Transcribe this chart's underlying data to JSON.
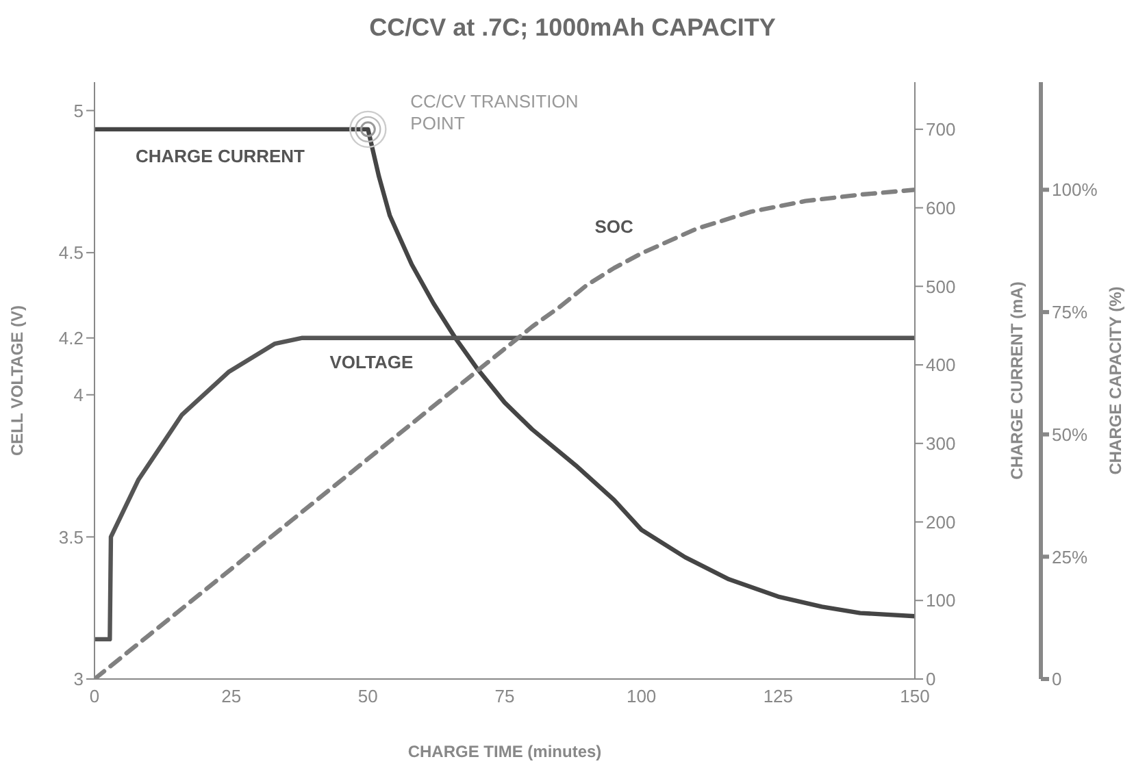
{
  "chart_data": {
    "type": "line",
    "title": "CC/CV at .7C; 1000mAh CAPACITY",
    "xlabel": "CHARGE TIME (minutes)",
    "ylabel": "CELL VOLTAGE (V)",
    "y2label": "CHARGE CURRENT (mA)",
    "y3label": "CHARGE CAPACITY (%)",
    "xlim": [
      0,
      150
    ],
    "xticks": [
      0,
      25,
      50,
      75,
      100,
      125,
      150
    ],
    "ylim": [
      3,
      5.1
    ],
    "yticks": [
      3,
      3.5,
      4,
      4.2,
      4.5,
      5
    ],
    "y2lim": [
      0,
      760
    ],
    "y2ticks": [
      0,
      100,
      200,
      300,
      400,
      500,
      600,
      700
    ],
    "y3lim": [
      0,
      122
    ],
    "y3ticks": [
      0,
      {
        "value": 25,
        "label": "25%"
      },
      {
        "value": 50,
        "label": "50%"
      },
      {
        "value": 75,
        "label": "75%"
      },
      {
        "value": 100,
        "label": "100%"
      }
    ],
    "grid": false,
    "marker": "none",
    "annotations": [
      "CC/CV TRANSITION POINT"
    ],
    "series": [
      {
        "name": "CHARGE CURRENT",
        "color": "#454545",
        "axis": "y2",
        "line_style": "solid",
        "x": [
          0,
          50,
          52,
          54,
          58,
          62,
          66,
          70,
          75,
          80,
          88,
          95,
          100,
          108,
          116,
          125,
          133,
          140,
          150
        ],
        "values": [
          700,
          700,
          640,
          590,
          528,
          478,
          434,
          395,
          352,
          318,
          272,
          228,
          190,
          155,
          127,
          105,
          92,
          84,
          80
        ]
      },
      {
        "name": "VOLTAGE",
        "color": "#555555",
        "line_style": "solid",
        "x": [
          0,
          2.8,
          3,
          8,
          16,
          24.5,
          33,
          38,
          150
        ],
        "values": [
          3.14,
          3.14,
          3.5,
          3.7,
          3.93,
          4.08,
          4.18,
          4.2,
          4.2
        ]
      },
      {
        "name": "SOC",
        "color": "#808080",
        "axis": "y3",
        "line_style": "dashed",
        "x": [
          0,
          10,
          20,
          30,
          40,
          50,
          60,
          70,
          80,
          85,
          90,
          95,
          100,
          110,
          120,
          130,
          140,
          150
        ],
        "values": [
          0,
          9,
          18,
          27,
          36,
          45,
          54,
          63,
          72,
          76,
          80.5,
          84,
          87,
          92,
          95.5,
          97.7,
          99,
          100
        ]
      }
    ]
  }
}
